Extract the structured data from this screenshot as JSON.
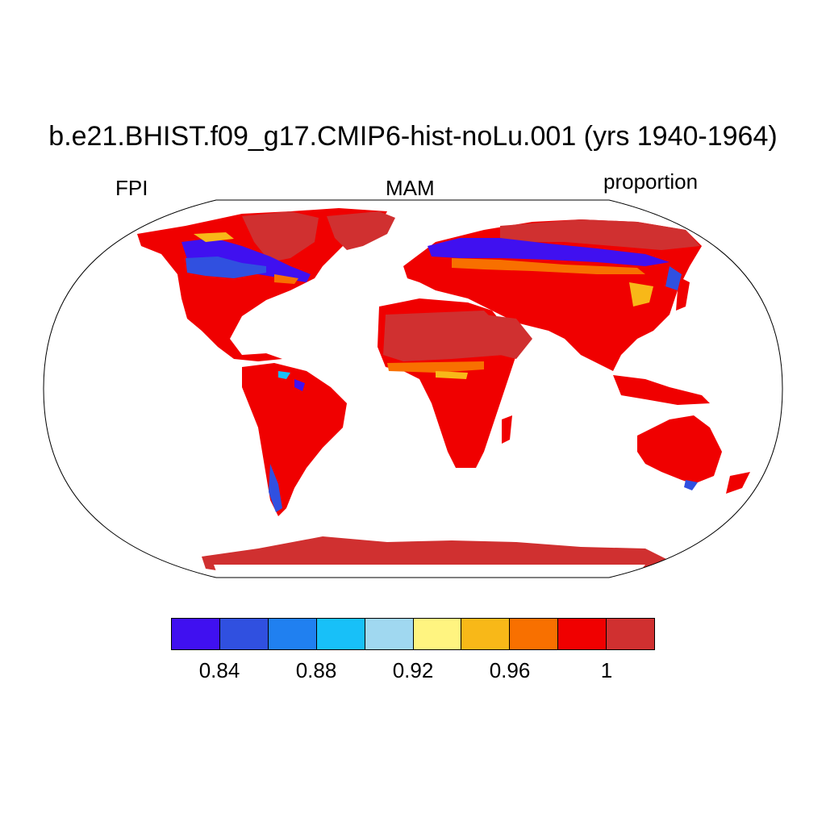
{
  "title": "b.e21.BHIST.f09_g17.CMIP6-hist-noLu.001 (yrs 1940-1964)",
  "left_label": "FPI",
  "center_label": "MAM",
  "right_label": "proportion",
  "colorbar": {
    "colors": [
      "#4010f0",
      "#3050e0",
      "#2080f0",
      "#18c0f8",
      "#a0d8f0",
      "#fff480",
      "#f8b818",
      "#f87000",
      "#f00000",
      "#d03030"
    ],
    "tick_labels": [
      "0.84",
      "0.88",
      "0.92",
      "0.96",
      "1"
    ]
  },
  "colors": {
    "land_base": "#f00000",
    "high_value": "#d03030",
    "low_value": "#4010f0"
  }
}
